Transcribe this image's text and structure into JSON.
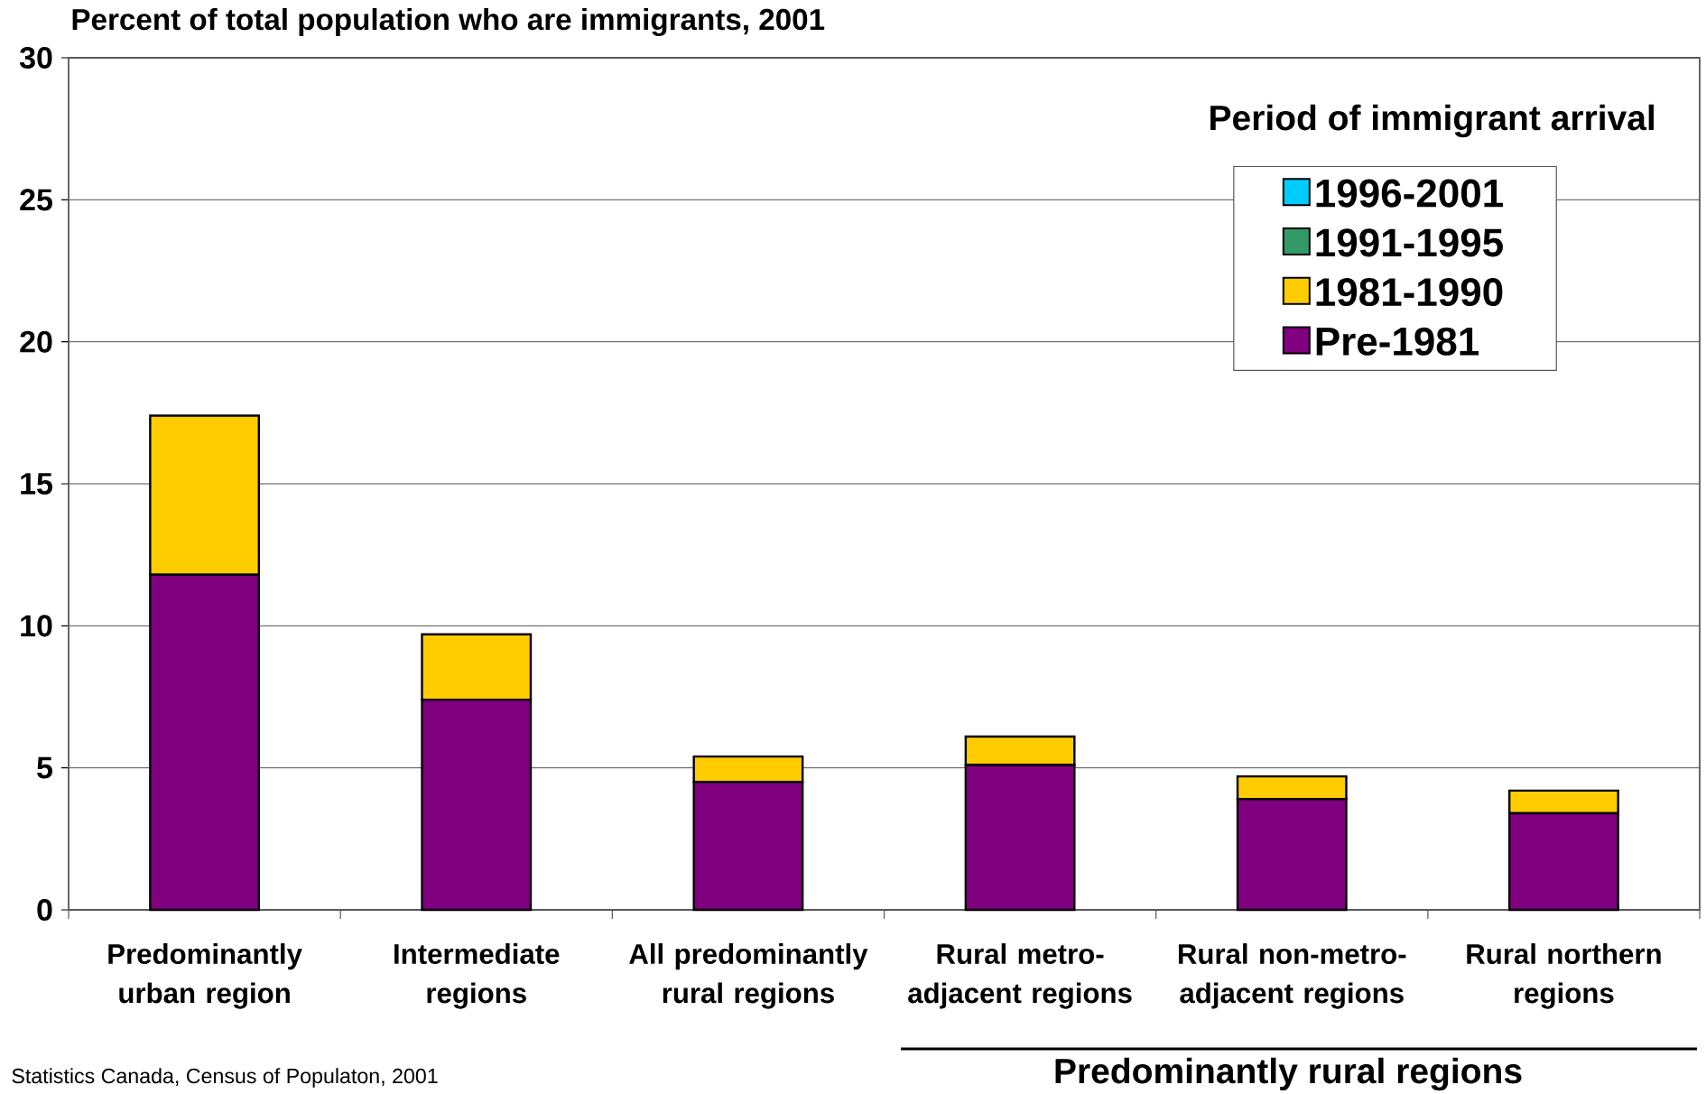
{
  "chart_data": {
    "type": "bar",
    "title": "Percent of total population who are immigrants, 2001",
    "legend_title": "Period of immigrant arrival",
    "categories": [
      "Predominantly urban region",
      "Intermediate regions",
      "All predominantly rural regions",
      "Rural metro-adjacent regions",
      "Rural non-metro-adjacent regions",
      "Rural northern regions"
    ],
    "stacked": true,
    "series": [
      {
        "name": "Pre-1981",
        "color": "#800080",
        "values": [
          11.8,
          7.4,
          4.5,
          5.1,
          3.9,
          3.4
        ]
      },
      {
        "name": "1981-1990",
        "color": "#ffcc00",
        "values": [
          5.6,
          2.3,
          0.9,
          1.0,
          0.8,
          0.8
        ]
      },
      {
        "name": "1991-1995",
        "color": "#339966",
        "values": [
          null,
          null,
          null,
          null,
          null,
          null
        ]
      },
      {
        "name": "1996-2001",
        "color": "#00ccff",
        "values": [
          null,
          null,
          null,
          null,
          null,
          null
        ]
      }
    ],
    "ylim": [
      0,
      30
    ],
    "yticks": [
      0,
      5,
      10,
      15,
      20,
      25,
      30
    ],
    "grid": "y",
    "legend": "top right",
    "annotations": [
      "Predominantly rural regions",
      "Statistics Canada, Census of Populaton, 2001"
    ]
  }
}
